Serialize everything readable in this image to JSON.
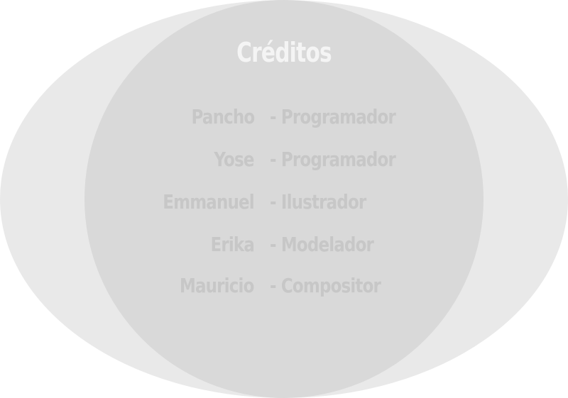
{
  "screen": {
    "title": "Créditos"
  },
  "credits": [
    {
      "name": "Pancho",
      "role": "- Programador"
    },
    {
      "name": "Yose",
      "role": "- Programador"
    },
    {
      "name": "Emmanuel",
      "role": "- Ilustrador"
    },
    {
      "name": "Erika",
      "role": "- Modelador"
    },
    {
      "name": "Mauricio",
      "role": "- Compositor"
    }
  ],
  "colors": {
    "outer_ellipse": "#e9e9e9",
    "inner_circle": "#d9d9d9",
    "title_text": "#f4f4f4",
    "credit_text": "#c7c7c7"
  }
}
